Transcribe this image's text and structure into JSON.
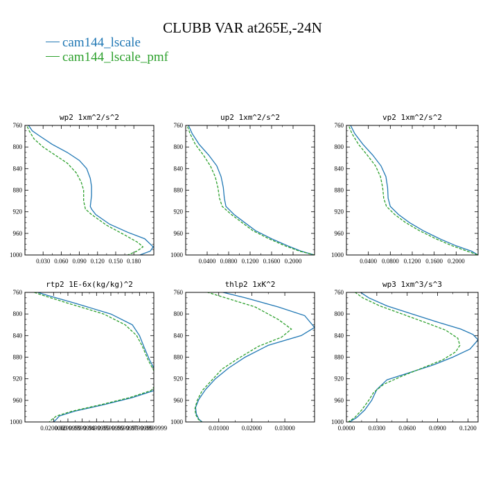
{
  "title": "CLUBB VAR at265E,-24N",
  "legend": [
    {
      "label": "cam144_lscale",
      "color": "#1f77b4"
    },
    {
      "label": "cam144_lscale_pmf",
      "color": "#2ca02c"
    }
  ],
  "chart_data": [
    {
      "type": "line",
      "title": "wp2   1xm^2/s^2",
      "xlim": [
        0.0,
        0.213
      ],
      "ylim": [
        760,
        1000
      ],
      "xticks": [
        "0.030",
        "0.060",
        "0.090",
        "0.120",
        "0.150",
        "0.180"
      ],
      "xtick_values": [
        0.03,
        0.06,
        0.09,
        0.12,
        0.15,
        0.18
      ],
      "yticks": [
        "760",
        "800",
        "840",
        "880",
        "920",
        "960",
        "1000"
      ],
      "ytick_values": [
        760,
        800,
        840,
        880,
        920,
        960,
        1000
      ],
      "series": [
        {
          "name": "cam144_lscale",
          "color": "#1f77b4",
          "dash": "",
          "x": [
            0.003,
            0.012,
            0.025,
            0.045,
            0.07,
            0.09,
            0.102,
            0.108,
            0.11,
            0.11,
            0.108,
            0.11,
            0.117,
            0.14,
            0.17,
            0.198,
            0.212,
            0.207,
            0.19
          ],
          "y": [
            755,
            770,
            780,
            795,
            810,
            825,
            840,
            858,
            873,
            890,
            910,
            915,
            925,
            943,
            958,
            970,
            985,
            993,
            1000
          ]
        },
        {
          "name": "cam144_lscale_pmf",
          "color": "#2ca02c",
          "dash": "4,2",
          "x": [
            0.001,
            0.007,
            0.015,
            0.03,
            0.05,
            0.07,
            0.085,
            0.093,
            0.097,
            0.097,
            0.1,
            0.11,
            0.135,
            0.165,
            0.187,
            0.195,
            0.185,
            0.17
          ],
          "y": [
            755,
            770,
            785,
            800,
            815,
            830,
            848,
            865,
            880,
            900,
            915,
            925,
            945,
            963,
            977,
            985,
            993,
            1000
          ]
        }
      ]
    },
    {
      "type": "line",
      "title": "up2   1xm^2/s^2",
      "xlim": [
        0.0,
        0.24
      ],
      "ylim": [
        760,
        1000
      ],
      "xticks": [
        "0.0400",
        "0.0800",
        "0.1200",
        "0.1600",
        "0.2000"
      ],
      "xtick_values": [
        0.04,
        0.08,
        0.12,
        0.16,
        0.2
      ],
      "yticks": [
        "760",
        "800",
        "840",
        "880",
        "920",
        "960",
        "1000"
      ],
      "ytick_values": [
        760,
        800,
        840,
        880,
        920,
        960,
        1000
      ],
      "series": [
        {
          "name": "cam144_lscale",
          "color": "#1f77b4",
          "dash": "",
          "x": [
            0.003,
            0.012,
            0.025,
            0.043,
            0.058,
            0.066,
            0.07,
            0.072,
            0.075,
            0.09,
            0.11,
            0.13,
            0.16,
            0.19,
            0.215,
            0.24
          ],
          "y": [
            755,
            775,
            795,
            815,
            835,
            855,
            875,
            895,
            910,
            925,
            940,
            955,
            970,
            983,
            993,
            1000
          ]
        },
        {
          "name": "cam144_lscale_pmf",
          "color": "#2ca02c",
          "dash": "4,2",
          "x": [
            0.001,
            0.008,
            0.018,
            0.033,
            0.046,
            0.055,
            0.06,
            0.063,
            0.068,
            0.085,
            0.105,
            0.125,
            0.155,
            0.185,
            0.212,
            0.24
          ],
          "y": [
            755,
            775,
            795,
            815,
            835,
            855,
            875,
            895,
            910,
            925,
            940,
            955,
            970,
            983,
            993,
            1000
          ]
        }
      ]
    },
    {
      "type": "line",
      "title": "vp2   1xm^2/s^2",
      "xlim": [
        0.0,
        0.24
      ],
      "ylim": [
        760,
        1000
      ],
      "xticks": [
        "0.0400",
        "0.0800",
        "0.1200",
        "0.1600",
        "0.2000"
      ],
      "xtick_values": [
        0.04,
        0.08,
        0.12,
        0.16,
        0.2
      ],
      "yticks": [
        "760",
        "800",
        "840",
        "880",
        "920",
        "960",
        "1000"
      ],
      "ytick_values": [
        760,
        800,
        840,
        880,
        920,
        960,
        1000
      ],
      "series": [
        {
          "name": "cam144_lscale",
          "color": "#1f77b4",
          "dash": "",
          "x": [
            0.005,
            0.015,
            0.03,
            0.048,
            0.063,
            0.072,
            0.075,
            0.076,
            0.08,
            0.095,
            0.115,
            0.14,
            0.17,
            0.2,
            0.228,
            0.24
          ],
          "y": [
            755,
            775,
            795,
            815,
            835,
            855,
            875,
            895,
            910,
            925,
            940,
            955,
            970,
            983,
            993,
            1000
          ]
        },
        {
          "name": "cam144_lscale_pmf",
          "color": "#2ca02c",
          "dash": "4,2",
          "x": [
            0.002,
            0.01,
            0.022,
            0.038,
            0.053,
            0.062,
            0.066,
            0.068,
            0.073,
            0.088,
            0.108,
            0.133,
            0.163,
            0.193,
            0.22,
            0.24
          ],
          "y": [
            755,
            775,
            795,
            815,
            835,
            855,
            875,
            895,
            910,
            925,
            940,
            955,
            970,
            983,
            993,
            1000
          ]
        }
      ]
    },
    {
      "type": "line",
      "title": "rtp2   1E-6x(kg/kg)^2",
      "xlim": [
        0.0,
        0.09
      ],
      "ylim": [
        760,
        1000
      ],
      "xticks": [
        "0.0200000",
        "0.0299999",
        "0.0399999",
        "0.0499999",
        "0.0599999",
        "0.0699999",
        "0.0799999",
        "0.0899999"
      ],
      "xtick_values": [
        0.02,
        0.03,
        0.04,
        0.05,
        0.06,
        0.07,
        0.08,
        0.09
      ],
      "yticks": [
        "760",
        "800",
        "840",
        "880",
        "920",
        "960",
        "1000"
      ],
      "ytick_values": [
        760,
        800,
        840,
        880,
        920,
        960,
        1000
      ],
      "series": [
        {
          "name": "cam144_lscale",
          "color": "#1f77b4",
          "dash": "",
          "x": [
            0.003,
            0.015,
            0.035,
            0.06,
            0.075,
            0.08,
            0.083,
            0.087,
            0.091,
            0.095,
            0.09,
            0.075,
            0.055,
            0.035,
            0.024,
            0.022,
            0.02
          ],
          "y": [
            755,
            765,
            780,
            800,
            820,
            840,
            860,
            885,
            905,
            923,
            942,
            955,
            968,
            980,
            989,
            995,
            1000
          ]
        },
        {
          "name": "cam144_lscale_pmf",
          "color": "#2ca02c",
          "dash": "4,2",
          "x": [
            0.001,
            0.012,
            0.03,
            0.055,
            0.07,
            0.078,
            0.082,
            0.086,
            0.09,
            0.094,
            0.088,
            0.073,
            0.053,
            0.033,
            0.022,
            0.019,
            0.017
          ],
          "y": [
            755,
            765,
            780,
            800,
            820,
            840,
            860,
            885,
            905,
            923,
            942,
            955,
            968,
            980,
            989,
            995,
            1000
          ]
        }
      ]
    },
    {
      "type": "line",
      "title": "thlp2   1xK^2",
      "xlim": [
        0.0,
        0.039
      ],
      "ylim": [
        760,
        1000
      ],
      "xticks": [
        "0.01000",
        "0.02000",
        "0.03000"
      ],
      "xtick_values": [
        0.01,
        0.02,
        0.03
      ],
      "yticks": [
        "760",
        "800",
        "840",
        "880",
        "920",
        "960",
        "1000"
      ],
      "ytick_values": [
        760,
        800,
        840,
        880,
        920,
        960,
        1000
      ],
      "series": [
        {
          "name": "cam144_lscale",
          "color": "#1f77b4",
          "dash": "",
          "x": [
            0.008,
            0.018,
            0.028,
            0.036,
            0.039,
            0.035,
            0.025,
            0.018,
            0.013,
            0.009,
            0.006,
            0.004,
            0.003,
            0.0032,
            0.004,
            0.005
          ],
          "y": [
            755,
            770,
            787,
            803,
            825,
            840,
            858,
            880,
            900,
            920,
            940,
            958,
            973,
            985,
            995,
            1000
          ]
        },
        {
          "name": "cam144_lscale_pmf",
          "color": "#2ca02c",
          "dash": "4,2",
          "x": [
            0.004,
            0.012,
            0.021,
            0.028,
            0.032,
            0.029,
            0.022,
            0.016,
            0.011,
            0.008,
            0.005,
            0.0035,
            0.0028,
            0.003,
            0.0038,
            0.0048
          ],
          "y": [
            755,
            770,
            787,
            810,
            828,
            843,
            860,
            882,
            902,
            922,
            942,
            960,
            975,
            986,
            995,
            1000
          ]
        }
      ]
    },
    {
      "type": "line",
      "title": "wp3   1xm^3/s^3",
      "xlim": [
        0.0,
        0.13
      ],
      "ylim": [
        760,
        1000
      ],
      "xticks": [
        "0.0000",
        "0.0300",
        "0.0600",
        "0.0900",
        "0.1200"
      ],
      "xtick_values": [
        0.0,
        0.03,
        0.06,
        0.09,
        0.12
      ],
      "yticks": [
        "760",
        "800",
        "840",
        "880",
        "920",
        "960",
        "1000"
      ],
      "ytick_values": [
        760,
        800,
        840,
        880,
        920,
        960,
        1000
      ],
      "series": [
        {
          "name": "cam144_lscale",
          "color": "#1f77b4",
          "dash": "",
          "x": [
            0.01,
            0.022,
            0.04,
            0.065,
            0.09,
            0.113,
            0.125,
            0.13,
            0.122,
            0.105,
            0.085,
            0.06,
            0.04,
            0.03,
            0.025,
            0.018,
            0.01,
            0.003
          ],
          "y": [
            755,
            770,
            785,
            800,
            815,
            828,
            838,
            848,
            865,
            880,
            895,
            910,
            922,
            940,
            960,
            978,
            992,
            1000
          ]
        },
        {
          "name": "cam144_lscale_pmf",
          "color": "#2ca02c",
          "dash": "4,2",
          "x": [
            0.005,
            0.016,
            0.033,
            0.055,
            0.077,
            0.098,
            0.11,
            0.112,
            0.108,
            0.095,
            0.075,
            0.055,
            0.037,
            0.027,
            0.022,
            0.015,
            0.008,
            0.002
          ],
          "y": [
            755,
            770,
            785,
            800,
            815,
            830,
            845,
            858,
            870,
            885,
            900,
            915,
            930,
            945,
            960,
            978,
            992,
            1000
          ]
        }
      ]
    }
  ]
}
